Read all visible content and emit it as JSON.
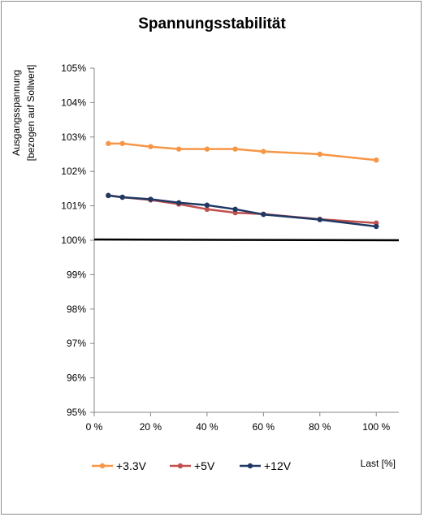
{
  "chart_data": {
    "type": "line",
    "title": "Spannungsstabilität",
    "ylabel_line1": "Ausgangsspannung",
    "ylabel_line2": "[bezogen auf Sollwert]",
    "xlabel": "Last [%]",
    "x_ticks": [
      "0 %",
      "20 %",
      "40 %",
      "60 %",
      "80 %",
      "100 %"
    ],
    "x_tick_values": [
      0,
      20,
      40,
      60,
      80,
      100
    ],
    "y_ticks": [
      "95%",
      "96%",
      "97%",
      "98%",
      "99%",
      "100%",
      "101%",
      "102%",
      "103%",
      "104%",
      "105%"
    ],
    "y_tick_values": [
      95,
      96,
      97,
      98,
      99,
      100,
      101,
      102,
      103,
      104,
      105
    ],
    "xlim": [
      0,
      108
    ],
    "ylim": [
      95,
      105
    ],
    "grid": false,
    "legend_position": "bottom-left",
    "reference_line": {
      "x": [
        0,
        108
      ],
      "y": [
        100.02,
        100.0
      ],
      "color": "#000000"
    },
    "series": [
      {
        "name": "+3.3V",
        "color": "#f79646",
        "x": [
          5,
          10,
          20,
          30,
          40,
          50,
          60,
          80,
          100
        ],
        "y": [
          102.81,
          102.81,
          102.72,
          102.65,
          102.65,
          102.65,
          102.58,
          102.5,
          102.33
        ]
      },
      {
        "name": "+5V",
        "color": "#c0504d",
        "x": [
          5,
          10,
          20,
          30,
          40,
          50,
          60,
          80,
          100
        ],
        "y": [
          101.3,
          101.25,
          101.17,
          101.05,
          100.9,
          100.8,
          100.76,
          100.61,
          100.5
        ]
      },
      {
        "name": "+12V",
        "color": "#1f3864",
        "x": [
          5,
          10,
          20,
          30,
          40,
          50,
          60,
          80,
          100
        ],
        "y": [
          101.3,
          101.25,
          101.19,
          101.09,
          101.02,
          100.9,
          100.75,
          100.6,
          100.4
        ]
      }
    ]
  }
}
